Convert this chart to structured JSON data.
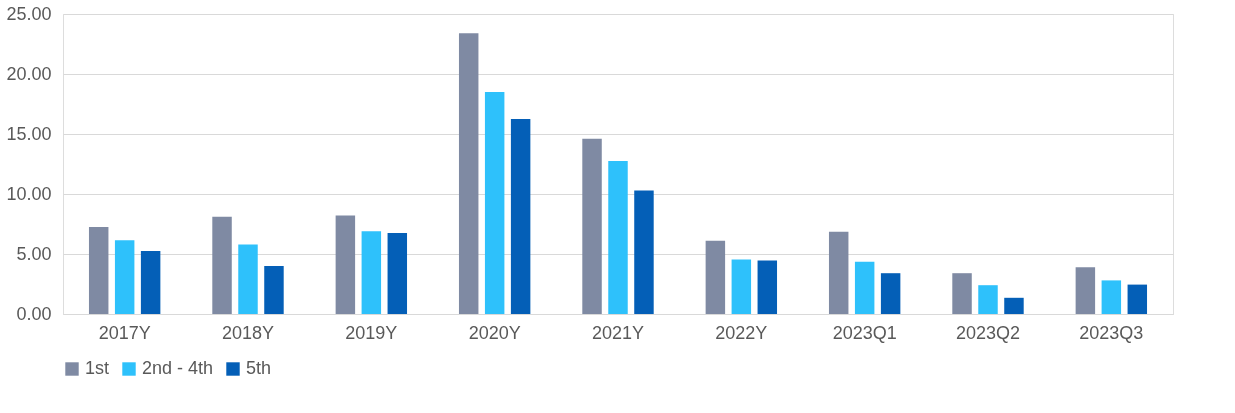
{
  "chart_data": {
    "type": "bar",
    "categories": [
      "2017Y",
      "2018Y",
      "2019Y",
      "2020Y",
      "2021Y",
      "2022Y",
      "2023Q1",
      "2023Q2",
      "2023Q3"
    ],
    "series": [
      {
        "name": "1st",
        "color": "#7f8aa3",
        "values": [
          7.25,
          8.1,
          8.2,
          23.4,
          14.6,
          6.1,
          6.85,
          3.4,
          3.9
        ]
      },
      {
        "name": "2nd - 4th",
        "color": "#2ec1fb",
        "values": [
          6.15,
          5.8,
          6.9,
          18.5,
          12.75,
          4.55,
          4.35,
          2.4,
          2.8
        ]
      },
      {
        "name": "5th",
        "color": "#045fb7",
        "values": [
          5.25,
          4.0,
          6.75,
          16.25,
          10.3,
          4.45,
          3.4,
          1.35,
          2.45
        ]
      }
    ],
    "ylim": [
      0,
      25
    ],
    "yticks": [
      {
        "value": 0,
        "label": "0.00"
      },
      {
        "value": 5,
        "label": "5.00"
      },
      {
        "value": 10,
        "label": "10.00"
      },
      {
        "value": 15,
        "label": "15.00"
      },
      {
        "value": 20,
        "label": "20.00"
      },
      {
        "value": 25,
        "label": "25.00"
      }
    ],
    "grid": "y",
    "legend": "bottom"
  }
}
